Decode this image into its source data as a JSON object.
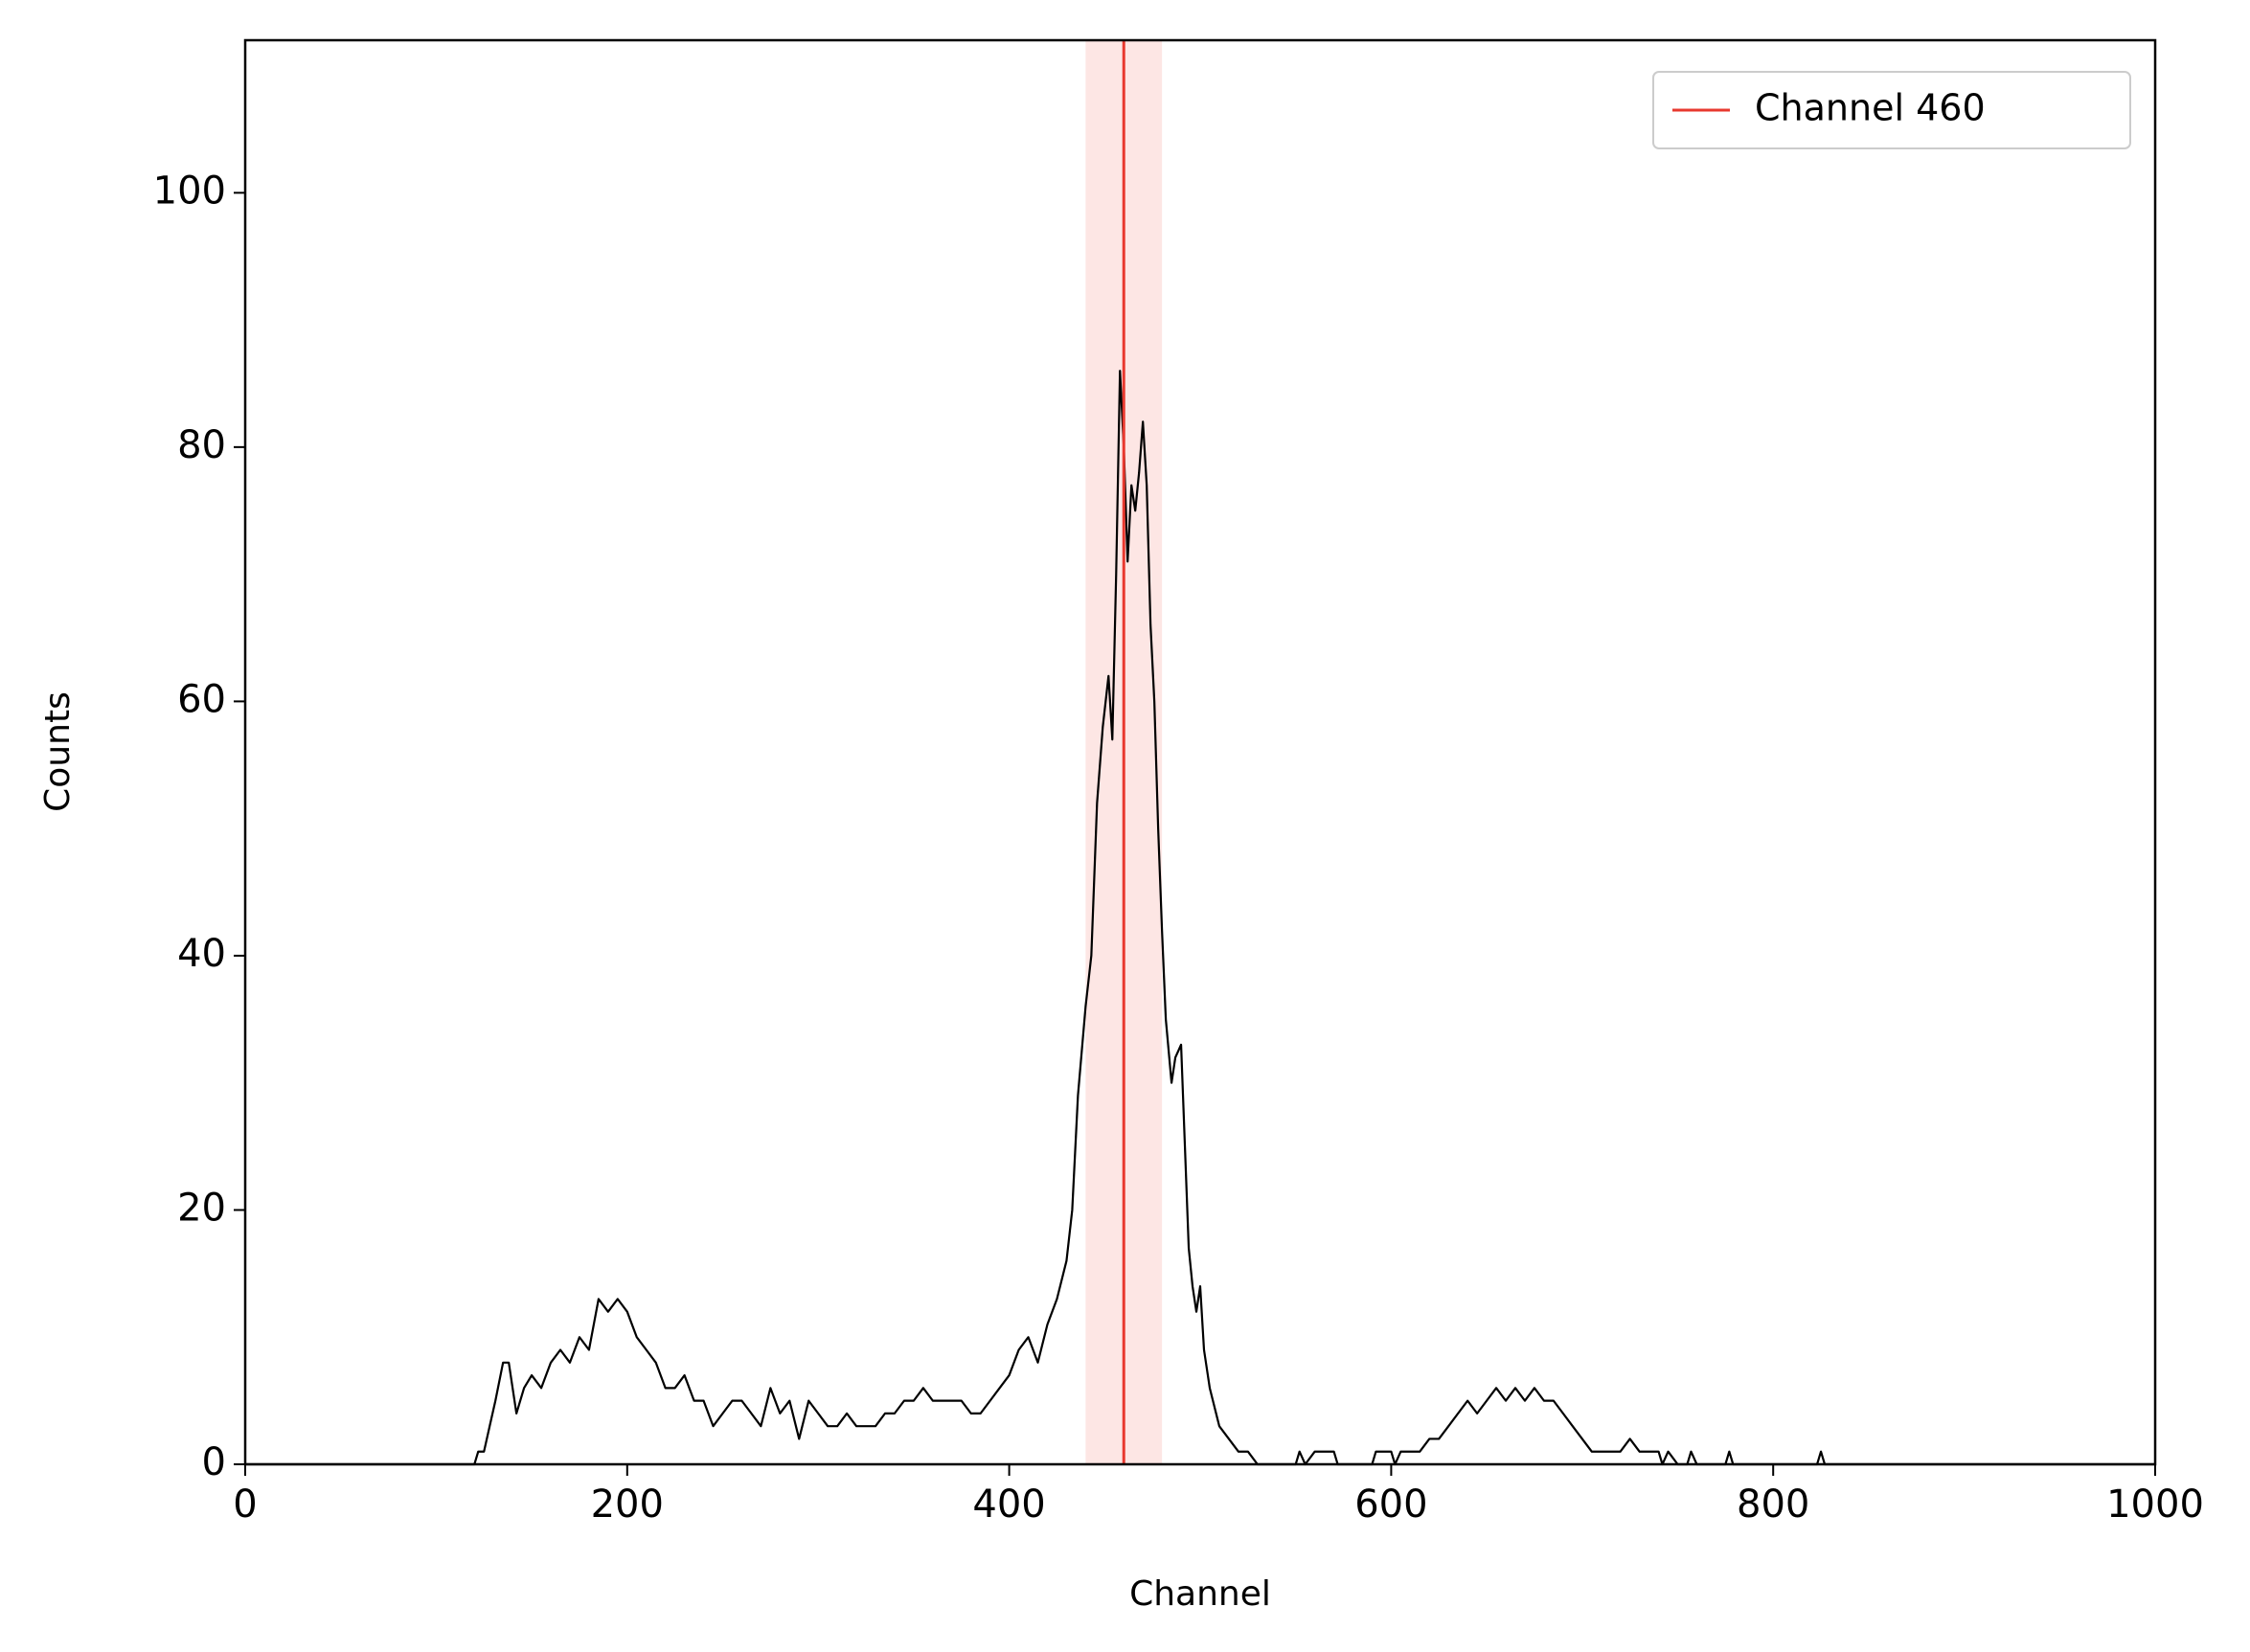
{
  "chart_data": {
    "type": "line",
    "xlabel": "Channel",
    "ylabel": "Counts",
    "x": [
      0,
      120,
      122,
      125,
      128,
      131,
      135,
      138,
      142,
      146,
      150,
      155,
      160,
      165,
      170,
      175,
      180,
      185,
      190,
      195,
      200,
      205,
      210,
      215,
      220,
      225,
      230,
      235,
      240,
      245,
      250,
      255,
      260,
      265,
      270,
      275,
      280,
      285,
      290,
      295,
      300,
      305,
      310,
      315,
      320,
      325,
      330,
      335,
      340,
      345,
      350,
      355,
      360,
      365,
      370,
      375,
      380,
      385,
      390,
      395,
      400,
      405,
      410,
      415,
      420,
      425,
      430,
      433,
      436,
      440,
      443,
      446,
      449,
      452,
      454,
      456,
      458,
      460,
      462,
      464,
      466,
      468,
      470,
      472,
      474,
      476,
      478,
      480,
      482,
      485,
      487,
      490,
      492,
      494,
      496,
      498,
      500,
      502,
      505,
      510,
      515,
      520,
      525,
      530,
      550,
      552,
      555,
      560,
      565,
      570,
      572,
      590,
      592,
      600,
      602,
      605,
      615,
      620,
      625,
      630,
      635,
      640,
      645,
      650,
      655,
      660,
      665,
      670,
      675,
      680,
      685,
      690,
      695,
      700,
      705,
      710,
      720,
      725,
      730,
      740,
      742,
      745,
      750,
      755,
      757,
      760,
      775,
      777,
      779,
      823,
      825,
      827,
      1000
    ],
    "values": [
      0,
      0,
      1,
      1,
      3,
      5,
      8,
      8,
      4,
      6,
      7,
      6,
      8,
      9,
      8,
      10,
      9,
      13,
      12,
      13,
      12,
      10,
      9,
      8,
      6,
      6,
      7,
      5,
      5,
      3,
      4,
      5,
      5,
      4,
      3,
      6,
      4,
      5,
      2,
      5,
      4,
      3,
      3,
      4,
      3,
      3,
      3,
      4,
      4,
      5,
      5,
      6,
      5,
      5,
      5,
      5,
      4,
      4,
      5,
      6,
      7,
      9,
      10,
      8,
      11,
      13,
      16,
      20,
      29,
      36,
      40,
      52,
      58,
      62,
      57,
      70,
      86,
      80,
      71,
      77,
      75,
      78,
      82,
      77,
      66,
      60,
      50,
      42,
      35,
      30,
      32,
      33,
      25,
      17,
      14,
      12,
      14,
      9,
      6,
      3,
      2,
      1,
      1,
      0,
      0,
      1,
      0,
      1,
      1,
      1,
      0,
      0,
      1,
      1,
      0,
      1,
      1,
      2,
      2,
      3,
      4,
      5,
      4,
      5,
      6,
      5,
      6,
      5,
      6,
      5,
      5,
      4,
      3,
      2,
      1,
      1,
      1,
      2,
      1,
      1,
      0,
      1,
      0,
      0,
      1,
      0,
      0,
      1,
      0,
      0,
      1,
      0,
      0
    ],
    "color": "#000000",
    "xlim": [
      0,
      1000
    ],
    "ylim": [
      0,
      112
    ],
    "xticks": [
      0,
      200,
      400,
      600,
      800,
      1000
    ],
    "yticks": [
      0,
      20,
      40,
      60,
      80,
      100
    ],
    "vline": {
      "x": 460,
      "label": "Channel 460",
      "color": "#e8392f"
    },
    "band": {
      "range": [
        440,
        480
      ],
      "color": "#fde6e4"
    },
    "legend": "upper right"
  }
}
